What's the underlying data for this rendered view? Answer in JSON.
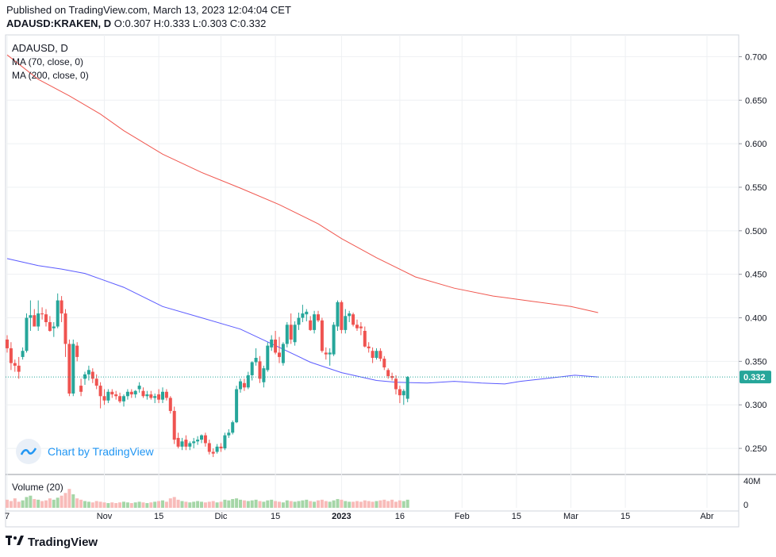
{
  "header": {
    "published": "Published on TradingView.com, March 13, 2023 12:04:04 CET",
    "symbol": "ADAUSD:KRAKEN, D",
    "ohlc": "O:0.307 H:0.333 L:0.303 C:0.332"
  },
  "legend": {
    "title": "ADAUSD, D",
    "ma70": "MA (70, close, 0)",
    "ma200": "MA (200, close, 0)",
    "volume": "Volume (20)"
  },
  "watermark": "Chart by TradingView",
  "footer_brand": "TradingView",
  "colors": {
    "up": "#26a69a",
    "down": "#ef5350",
    "ma70": "#5b5bff",
    "ma200": "#f0574f",
    "last": "#26a69a"
  },
  "chart_data": {
    "type": "candlestick",
    "title": "ADAUSD, D",
    "y_ticks": [
      "0.250",
      "0.300",
      "0.350",
      "0.400",
      "0.450",
      "0.500",
      "0.550",
      "0.600",
      "0.650",
      "0.700"
    ],
    "y_range": [
      0.22,
      0.725
    ],
    "x_ticks": [
      {
        "day": 0,
        "label": "7"
      },
      {
        "day": 25,
        "label": "Nov"
      },
      {
        "day": 39,
        "label": "15"
      },
      {
        "day": 55,
        "label": "Dic"
      },
      {
        "day": 69,
        "label": "15"
      },
      {
        "day": 86,
        "label": "2023"
      },
      {
        "day": 101,
        "label": "16"
      },
      {
        "day": 117,
        "label": "Feb"
      },
      {
        "day": 131,
        "label": "15"
      },
      {
        "day": 145,
        "label": "Mar"
      },
      {
        "day": 159,
        "label": "15"
      },
      {
        "day": 180,
        "label": "Abr"
      }
    ],
    "last_price": "0.332",
    "volume_ticks": [
      "40M",
      "0"
    ],
    "candles": [
      {
        "o": 0.375,
        "h": 0.38,
        "l": 0.36,
        "c": 0.365
      },
      {
        "o": 0.365,
        "h": 0.372,
        "l": 0.34,
        "c": 0.348
      },
      {
        "o": 0.348,
        "h": 0.352,
        "l": 0.338,
        "c": 0.345
      },
      {
        "o": 0.345,
        "h": 0.355,
        "l": 0.33,
        "c": 0.338
      },
      {
        "o": 0.355,
        "h": 0.366,
        "l": 0.352,
        "c": 0.362
      },
      {
        "o": 0.362,
        "h": 0.405,
        "l": 0.36,
        "c": 0.4
      },
      {
        "o": 0.4,
        "h": 0.42,
        "l": 0.385,
        "c": 0.403
      },
      {
        "o": 0.403,
        "h": 0.41,
        "l": 0.39,
        "c": 0.39
      },
      {
        "o": 0.39,
        "h": 0.42,
        "l": 0.385,
        "c": 0.405
      },
      {
        "o": 0.405,
        "h": 0.412,
        "l": 0.398,
        "c": 0.404
      },
      {
        "o": 0.404,
        "h": 0.41,
        "l": 0.39,
        "c": 0.395
      },
      {
        "o": 0.395,
        "h": 0.402,
        "l": 0.384,
        "c": 0.385
      },
      {
        "o": 0.388,
        "h": 0.395,
        "l": 0.378,
        "c": 0.39
      },
      {
        "o": 0.39,
        "h": 0.428,
        "l": 0.388,
        "c": 0.42
      },
      {
        "o": 0.42,
        "h": 0.425,
        "l": 0.395,
        "c": 0.405
      },
      {
        "o": 0.405,
        "h": 0.41,
        "l": 0.355,
        "c": 0.37
      },
      {
        "o": 0.37,
        "h": 0.375,
        "l": 0.31,
        "c": 0.313
      },
      {
        "o": 0.313,
        "h": 0.375,
        "l": 0.31,
        "c": 0.37
      },
      {
        "o": 0.368,
        "h": 0.372,
        "l": 0.35,
        "c": 0.355
      },
      {
        "o": 0.322,
        "h": 0.33,
        "l": 0.31,
        "c": 0.315
      },
      {
        "o": 0.33,
        "h": 0.338,
        "l": 0.323,
        "c": 0.335
      },
      {
        "o": 0.335,
        "h": 0.345,
        "l": 0.328,
        "c": 0.34
      },
      {
        "o": 0.338,
        "h": 0.342,
        "l": 0.325,
        "c": 0.33
      },
      {
        "o": 0.33,
        "h": 0.335,
        "l": 0.318,
        "c": 0.322
      },
      {
        "o": 0.322,
        "h": 0.326,
        "l": 0.296,
        "c": 0.31
      },
      {
        "o": 0.31,
        "h": 0.318,
        "l": 0.3,
        "c": 0.305
      },
      {
        "o": 0.305,
        "h": 0.318,
        "l": 0.302,
        "c": 0.315
      },
      {
        "o": 0.315,
        "h": 0.318,
        "l": 0.308,
        "c": 0.312
      },
      {
        "o": 0.312,
        "h": 0.316,
        "l": 0.306,
        "c": 0.31
      },
      {
        "o": 0.31,
        "h": 0.314,
        "l": 0.302,
        "c": 0.304
      },
      {
        "o": 0.304,
        "h": 0.312,
        "l": 0.298,
        "c": 0.31
      },
      {
        "o": 0.31,
        "h": 0.318,
        "l": 0.306,
        "c": 0.315
      },
      {
        "o": 0.315,
        "h": 0.318,
        "l": 0.308,
        "c": 0.312
      },
      {
        "o": 0.312,
        "h": 0.317,
        "l": 0.308,
        "c": 0.316
      },
      {
        "o": 0.318,
        "h": 0.326,
        "l": 0.314,
        "c": 0.322
      },
      {
        "o": 0.316,
        "h": 0.32,
        "l": 0.308,
        "c": 0.31
      },
      {
        "o": 0.31,
        "h": 0.316,
        "l": 0.306,
        "c": 0.312
      },
      {
        "o": 0.312,
        "h": 0.316,
        "l": 0.306,
        "c": 0.308
      },
      {
        "o": 0.308,
        "h": 0.313,
        "l": 0.302,
        "c": 0.31
      },
      {
        "o": 0.312,
        "h": 0.318,
        "l": 0.302,
        "c": 0.306
      },
      {
        "o": 0.306,
        "h": 0.32,
        "l": 0.302,
        "c": 0.315
      },
      {
        "o": 0.315,
        "h": 0.318,
        "l": 0.305,
        "c": 0.308
      },
      {
        "o": 0.308,
        "h": 0.31,
        "l": 0.29,
        "c": 0.293
      },
      {
        "o": 0.293,
        "h": 0.298,
        "l": 0.255,
        "c": 0.26
      },
      {
        "o": 0.262,
        "h": 0.268,
        "l": 0.25,
        "c": 0.252
      },
      {
        "o": 0.252,
        "h": 0.262,
        "l": 0.248,
        "c": 0.258
      },
      {
        "o": 0.26,
        "h": 0.265,
        "l": 0.248,
        "c": 0.252
      },
      {
        "o": 0.252,
        "h": 0.258,
        "l": 0.248,
        "c": 0.256
      },
      {
        "o": 0.256,
        "h": 0.262,
        "l": 0.25,
        "c": 0.258
      },
      {
        "o": 0.258,
        "h": 0.264,
        "l": 0.254,
        "c": 0.26
      },
      {
        "o": 0.26,
        "h": 0.266,
        "l": 0.256,
        "c": 0.265
      },
      {
        "o": 0.265,
        "h": 0.268,
        "l": 0.252,
        "c": 0.256
      },
      {
        "o": 0.256,
        "h": 0.26,
        "l": 0.243,
        "c": 0.246
      },
      {
        "o": 0.246,
        "h": 0.25,
        "l": 0.24,
        "c": 0.244
      },
      {
        "o": 0.246,
        "h": 0.255,
        "l": 0.244,
        "c": 0.252
      },
      {
        "o": 0.252,
        "h": 0.256,
        "l": 0.246,
        "c": 0.25
      },
      {
        "o": 0.25,
        "h": 0.268,
        "l": 0.248,
        "c": 0.265
      },
      {
        "o": 0.265,
        "h": 0.272,
        "l": 0.262,
        "c": 0.268
      },
      {
        "o": 0.268,
        "h": 0.282,
        "l": 0.266,
        "c": 0.28
      },
      {
        "o": 0.28,
        "h": 0.322,
        "l": 0.279,
        "c": 0.318
      },
      {
        "o": 0.318,
        "h": 0.33,
        "l": 0.314,
        "c": 0.327
      },
      {
        "o": 0.325,
        "h": 0.33,
        "l": 0.316,
        "c": 0.32
      },
      {
        "o": 0.32,
        "h": 0.338,
        "l": 0.318,
        "c": 0.334
      },
      {
        "o": 0.334,
        "h": 0.35,
        "l": 0.328,
        "c": 0.349
      },
      {
        "o": 0.349,
        "h": 0.365,
        "l": 0.345,
        "c": 0.354
      },
      {
        "o": 0.35,
        "h": 0.356,
        "l": 0.325,
        "c": 0.33
      },
      {
        "o": 0.326,
        "h": 0.345,
        "l": 0.32,
        "c": 0.342
      },
      {
        "o": 0.34,
        "h": 0.372,
        "l": 0.338,
        "c": 0.368
      },
      {
        "o": 0.366,
        "h": 0.38,
        "l": 0.362,
        "c": 0.375
      },
      {
        "o": 0.375,
        "h": 0.385,
        "l": 0.358,
        "c": 0.36
      },
      {
        "o": 0.36,
        "h": 0.378,
        "l": 0.348,
        "c": 0.355
      },
      {
        "o": 0.348,
        "h": 0.372,
        "l": 0.345,
        "c": 0.37
      },
      {
        "o": 0.37,
        "h": 0.395,
        "l": 0.366,
        "c": 0.392
      },
      {
        "o": 0.392,
        "h": 0.405,
        "l": 0.37,
        "c": 0.375
      },
      {
        "o": 0.372,
        "h": 0.396,
        "l": 0.368,
        "c": 0.392
      },
      {
        "o": 0.392,
        "h": 0.406,
        "l": 0.386,
        "c": 0.4
      },
      {
        "o": 0.4,
        "h": 0.415,
        "l": 0.395,
        "c": 0.405
      },
      {
        "o": 0.404,
        "h": 0.41,
        "l": 0.396,
        "c": 0.407
      },
      {
        "o": 0.397,
        "h": 0.402,
        "l": 0.385,
        "c": 0.386
      },
      {
        "o": 0.386,
        "h": 0.408,
        "l": 0.382,
        "c": 0.404
      },
      {
        "o": 0.404,
        "h": 0.408,
        "l": 0.395,
        "c": 0.397
      },
      {
        "o": 0.397,
        "h": 0.4,
        "l": 0.36,
        "c": 0.362
      },
      {
        "o": 0.36,
        "h": 0.366,
        "l": 0.352,
        "c": 0.358
      },
      {
        "o": 0.358,
        "h": 0.365,
        "l": 0.345,
        "c": 0.36
      },
      {
        "o": 0.358,
        "h": 0.395,
        "l": 0.356,
        "c": 0.392
      },
      {
        "o": 0.39,
        "h": 0.42,
        "l": 0.385,
        "c": 0.418
      },
      {
        "o": 0.418,
        "h": 0.42,
        "l": 0.382,
        "c": 0.386
      },
      {
        "o": 0.386,
        "h": 0.41,
        "l": 0.382,
        "c": 0.402
      },
      {
        "o": 0.402,
        "h": 0.408,
        "l": 0.395,
        "c": 0.405
      },
      {
        "o": 0.404,
        "h": 0.406,
        "l": 0.39,
        "c": 0.392
      },
      {
        "o": 0.392,
        "h": 0.398,
        "l": 0.385,
        "c": 0.388
      },
      {
        "o": 0.39,
        "h": 0.395,
        "l": 0.38,
        "c": 0.388
      },
      {
        "o": 0.385,
        "h": 0.39,
        "l": 0.366,
        "c": 0.367
      },
      {
        "o": 0.367,
        "h": 0.372,
        "l": 0.36,
        "c": 0.365
      },
      {
        "o": 0.362,
        "h": 0.366,
        "l": 0.348,
        "c": 0.354
      },
      {
        "o": 0.354,
        "h": 0.365,
        "l": 0.352,
        "c": 0.362
      },
      {
        "o": 0.362,
        "h": 0.365,
        "l": 0.35,
        "c": 0.353
      },
      {
        "o": 0.353,
        "h": 0.356,
        "l": 0.34,
        "c": 0.343
      },
      {
        "o": 0.34,
        "h": 0.342,
        "l": 0.33,
        "c": 0.333
      },
      {
        "o": 0.333,
        "h": 0.337,
        "l": 0.328,
        "c": 0.331
      },
      {
        "o": 0.33,
        "h": 0.334,
        "l": 0.312,
        "c": 0.318
      },
      {
        "o": 0.318,
        "h": 0.322,
        "l": 0.302,
        "c": 0.311
      },
      {
        "o": 0.311,
        "h": 0.318,
        "l": 0.3,
        "c": 0.316
      },
      {
        "o": 0.307,
        "h": 0.333,
        "l": 0.303,
        "c": 0.332
      }
    ],
    "volume": [
      12,
      10,
      14,
      9,
      11,
      16,
      18,
      13,
      12,
      10,
      11,
      14,
      12,
      15,
      18,
      22,
      28,
      20,
      14,
      12,
      10,
      9,
      8,
      10,
      9,
      8,
      7,
      8,
      7,
      8,
      9,
      8,
      7,
      8,
      9,
      8,
      7,
      8,
      9,
      10,
      11,
      9,
      14,
      16,
      12,
      10,
      9,
      8,
      9,
      10,
      9,
      8,
      9,
      10,
      8,
      9,
      12,
      11,
      13,
      14,
      12,
      11,
      10,
      11,
      12,
      10,
      9,
      11,
      12,
      10,
      9,
      8,
      11,
      10,
      9,
      10,
      11,
      12,
      10,
      9,
      11,
      12,
      10,
      9,
      11,
      13,
      12,
      10,
      9,
      9,
      10,
      9,
      11,
      10,
      9,
      10,
      11,
      12,
      10,
      12,
      9,
      11,
      10,
      12
    ],
    "ma200": [
      [
        0,
        0.702
      ],
      [
        8,
        0.674
      ],
      [
        16,
        0.655
      ],
      [
        24,
        0.634
      ],
      [
        30,
        0.615
      ],
      [
        40,
        0.588
      ],
      [
        50,
        0.567
      ],
      [
        60,
        0.549
      ],
      [
        70,
        0.53
      ],
      [
        80,
        0.508
      ],
      [
        86,
        0.491
      ],
      [
        95,
        0.469
      ],
      [
        105,
        0.447
      ],
      [
        115,
        0.434
      ],
      [
        125,
        0.425
      ],
      [
        135,
        0.419
      ],
      [
        145,
        0.413
      ],
      [
        152,
        0.406
      ]
    ],
    "ma70": [
      [
        0,
        0.468
      ],
      [
        8,
        0.46
      ],
      [
        14,
        0.456
      ],
      [
        20,
        0.451
      ],
      [
        30,
        0.435
      ],
      [
        40,
        0.413
      ],
      [
        50,
        0.4
      ],
      [
        60,
        0.387
      ],
      [
        70,
        0.366
      ],
      [
        78,
        0.349
      ],
      [
        86,
        0.337
      ],
      [
        95,
        0.328
      ],
      [
        100,
        0.326
      ],
      [
        108,
        0.325
      ],
      [
        115,
        0.327
      ],
      [
        122,
        0.325
      ],
      [
        128,
        0.324
      ],
      [
        132,
        0.327
      ],
      [
        140,
        0.331
      ],
      [
        146,
        0.334
      ],
      [
        152,
        0.332
      ]
    ]
  }
}
